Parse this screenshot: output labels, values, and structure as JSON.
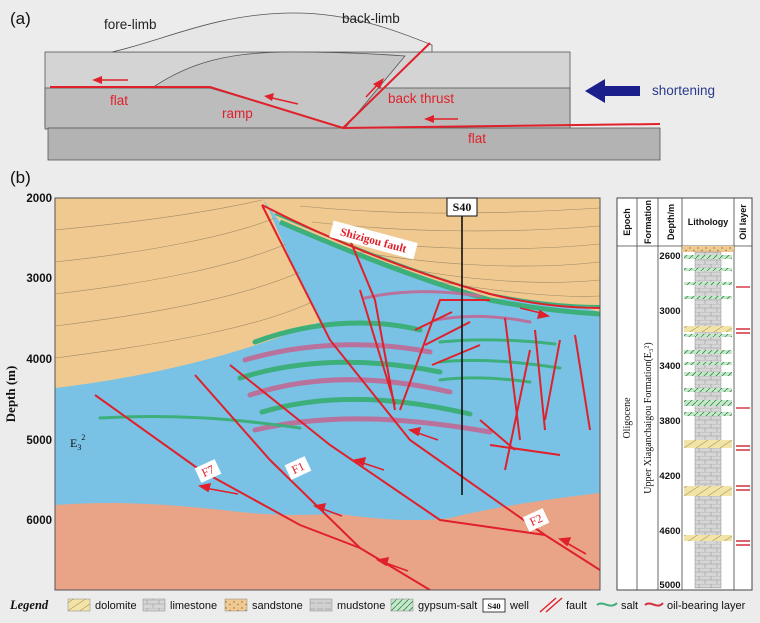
{
  "panel_a": {
    "label": "(a)",
    "fore_limb": "fore-limb",
    "back_limb": "back-limb",
    "flat_upper": "flat",
    "ramp": "ramp",
    "back_thrust": "back thrust",
    "flat_lower": "flat",
    "shortening": "shortening"
  },
  "panel_b": {
    "label": "(b)",
    "y_axis_title": "Depth (m)",
    "y_ticks": [
      "2000",
      "3000",
      "4000",
      "5000",
      "6000"
    ],
    "well_label": "S40",
    "shizigou_label": "Shizigou fault",
    "formation_label_main": "E",
    "formation_label_sub": "3",
    "formation_label_sup": "2",
    "faults": [
      "F7",
      "F1",
      "F2"
    ]
  },
  "column": {
    "headers": [
      "Epoch",
      "Formation",
      "Lithology",
      "Depth/m",
      "Oil layer"
    ],
    "epoch": "Oligocene",
    "formation": "Upper Xiaganchaigou Formation(E₃²)",
    "depth_ticks": [
      "2600",
      "3000",
      "3400",
      "3800",
      "4200",
      "4600",
      "5000"
    ]
  },
  "legend": {
    "title": "Legend",
    "items": [
      "dolomite",
      "limestone",
      "sandstone",
      "mudstone",
      "gypsum-salt",
      "well",
      "fault",
      "salt",
      "oil-bearing layer"
    ],
    "well_symbol": "S40"
  },
  "colors": {
    "background": "#ececec",
    "fault_red": "#e0202a",
    "sandstone": "#efc98f",
    "formation_blue": "#79c2e6",
    "basement_pink": "#e9a487",
    "salt_green": "#3daf7a",
    "oil_purple": "#b9729c",
    "arrow_navy": "#1b1f8c",
    "dolomite_yellow": "#f2e3a6"
  }
}
